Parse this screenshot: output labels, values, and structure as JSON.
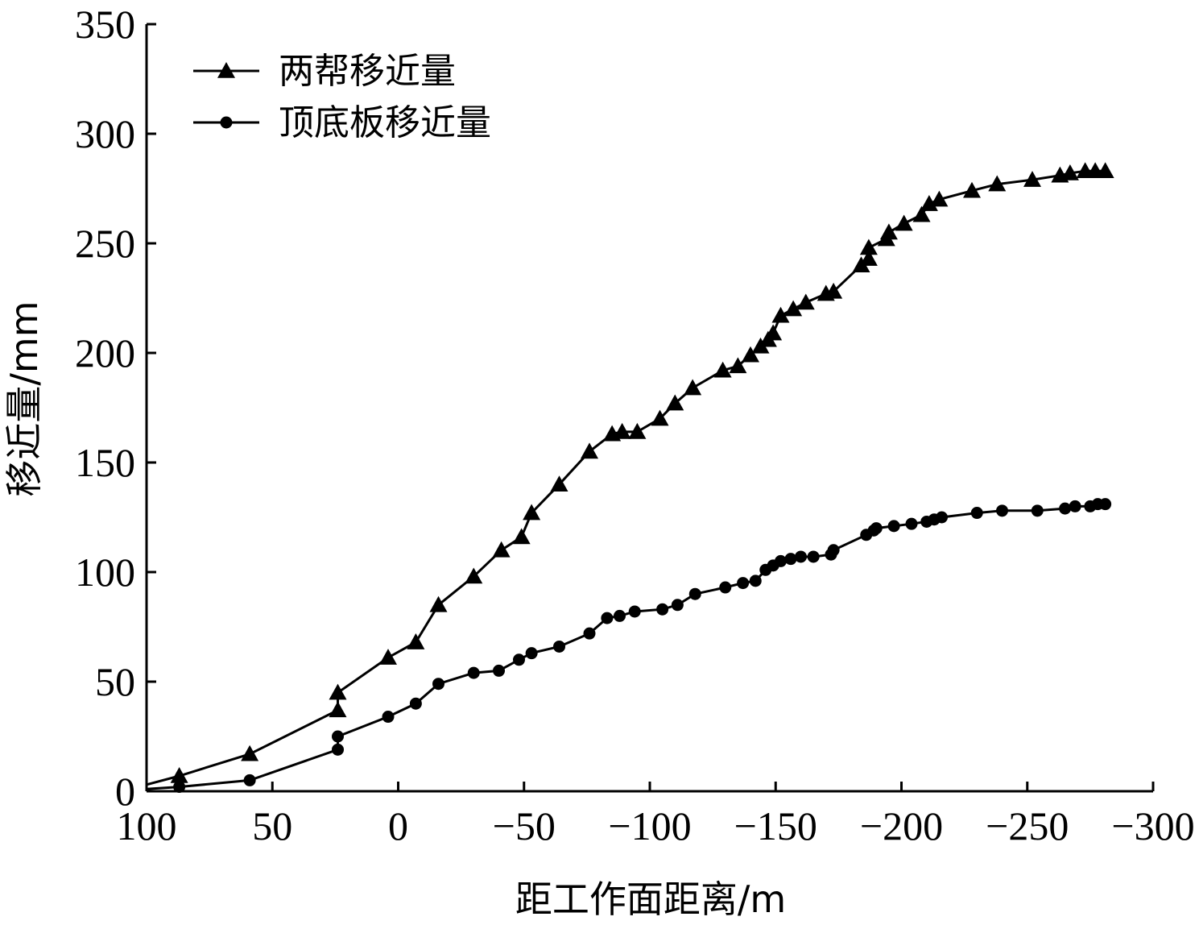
{
  "chart_data": {
    "type": "line",
    "title": "",
    "xlabel": "距工作面距离/m",
    "ylabel": "移近量/mm",
    "xlim": [
      100,
      -300
    ],
    "ylim": [
      0,
      350
    ],
    "x_ticks": [
      100,
      50,
      0,
      -50,
      -100,
      -150,
      -200,
      -250,
      -300
    ],
    "x_tick_labels": [
      "100",
      "50",
      "0",
      "−50",
      "−100",
      "−150",
      "−200",
      "−250",
      "−300"
    ],
    "y_ticks": [
      0,
      50,
      100,
      150,
      200,
      250,
      300,
      350
    ],
    "y_tick_labels": [
      "0",
      "50",
      "100",
      "150",
      "200",
      "250",
      "300",
      "350"
    ],
    "grid": false,
    "legend": "top-left",
    "series": [
      {
        "name": "两帮移近量",
        "marker": "triangle",
        "color": "#000000",
        "points": [
          [
            100,
            3
          ],
          [
            87,
            7
          ],
          [
            59,
            17
          ],
          [
            24,
            37
          ],
          [
            24,
            45
          ],
          [
            4,
            61
          ],
          [
            -7,
            68
          ],
          [
            -16,
            85
          ],
          [
            -30,
            98
          ],
          [
            -41,
            110
          ],
          [
            -49,
            116
          ],
          [
            -53,
            127
          ],
          [
            -64,
            140
          ],
          [
            -76,
            155
          ],
          [
            -85,
            163
          ],
          [
            -89,
            164
          ],
          [
            -95,
            164
          ],
          [
            -104,
            170
          ],
          [
            -110,
            177
          ],
          [
            -117,
            184
          ],
          [
            -129,
            192
          ],
          [
            -135,
            194
          ],
          [
            -140,
            199
          ],
          [
            -144,
            203
          ],
          [
            -147,
            206
          ],
          [
            -149,
            209
          ],
          [
            -152,
            217
          ],
          [
            -157,
            220
          ],
          [
            -162,
            223
          ],
          [
            -170,
            227
          ],
          [
            -173,
            228
          ],
          [
            -184,
            240
          ],
          [
            -187,
            243
          ],
          [
            -187,
            248
          ],
          [
            -194,
            252
          ],
          [
            -195,
            255
          ],
          [
            -201,
            259
          ],
          [
            -208,
            263
          ],
          [
            -211,
            268
          ],
          [
            -215,
            270
          ],
          [
            -228,
            274
          ],
          [
            -238,
            277
          ],
          [
            -252,
            279
          ],
          [
            -263,
            281
          ],
          [
            -267,
            282
          ],
          [
            -273,
            283
          ],
          [
            -277,
            283
          ],
          [
            -281,
            283
          ]
        ]
      },
      {
        "name": "顶底板移近量",
        "marker": "circle",
        "color": "#000000",
        "points": [
          [
            100,
            1
          ],
          [
            87,
            2
          ],
          [
            59,
            5
          ],
          [
            24,
            19
          ],
          [
            24,
            25
          ],
          [
            4,
            34
          ],
          [
            -7,
            40
          ],
          [
            -16,
            49
          ],
          [
            -30,
            54
          ],
          [
            -40,
            55
          ],
          [
            -48,
            60
          ],
          [
            -53,
            63
          ],
          [
            -64,
            66
          ],
          [
            -76,
            72
          ],
          [
            -83,
            79
          ],
          [
            -88,
            80
          ],
          [
            -94,
            82
          ],
          [
            -105,
            83
          ],
          [
            -111,
            85
          ],
          [
            -118,
            90
          ],
          [
            -130,
            93
          ],
          [
            -137,
            95
          ],
          [
            -142,
            96
          ],
          [
            -146,
            101
          ],
          [
            -149,
            103
          ],
          [
            -152,
            105
          ],
          [
            -156,
            106
          ],
          [
            -160,
            107
          ],
          [
            -165,
            107
          ],
          [
            -172,
            108
          ],
          [
            -173,
            110
          ],
          [
            -186,
            117
          ],
          [
            -189,
            119
          ],
          [
            -190,
            120
          ],
          [
            -197,
            121
          ],
          [
            -204,
            122
          ],
          [
            -210,
            123
          ],
          [
            -213,
            124
          ],
          [
            -216,
            125
          ],
          [
            -230,
            127
          ],
          [
            -240,
            128
          ],
          [
            -254,
            128
          ],
          [
            -265,
            129
          ],
          [
            -269,
            130
          ],
          [
            -275,
            130
          ],
          [
            -278,
            131
          ],
          [
            -281,
            131
          ]
        ]
      }
    ]
  }
}
